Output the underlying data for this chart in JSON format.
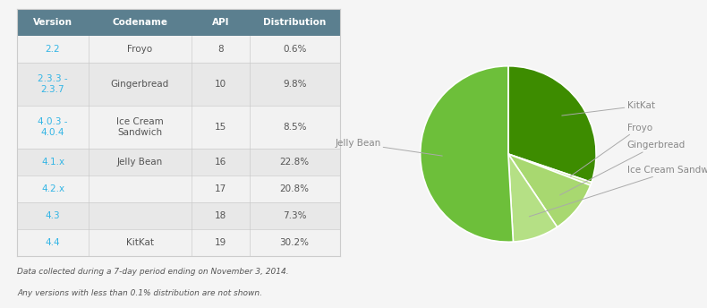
{
  "table": {
    "headers": [
      "Version",
      "Codename",
      "API",
      "Distribution"
    ],
    "rows": [
      [
        "2.2",
        "Froyo",
        "8",
        "0.6%"
      ],
      [
        "2.3.3 -\n2.3.7",
        "Gingerbread",
        "10",
        "9.8%"
      ],
      [
        "4.0.3 -\n4.0.4",
        "Ice Cream\nSandwich",
        "15",
        "8.5%"
      ],
      [
        "4.1.x",
        "Jelly Bean",
        "16",
        "22.8%"
      ],
      [
        "4.2.x",
        "",
        "17",
        "20.8%"
      ],
      [
        "4.3",
        "",
        "18",
        "7.3%"
      ],
      [
        "4.4",
        "KitKat",
        "19",
        "30.2%"
      ]
    ],
    "header_bg": "#5b7f8f",
    "header_fg": "#ffffff",
    "row_bg1": "#f2f2f2",
    "row_bg2": "#e8e8e8",
    "version_color": "#33b5e5",
    "text_color": "#555555",
    "border_color": "#cccccc"
  },
  "pie": {
    "labels": [
      "KitKat",
      "Froyo",
      "Gingerbread",
      "Ice Cream Sandwich",
      "Jelly Bean"
    ],
    "values": [
      30.2,
      0.6,
      9.8,
      8.5,
      50.9
    ],
    "colors": [
      "#3d8c00",
      "#c8e6a0",
      "#a8d870",
      "#b5e085",
      "#6dbf3a"
    ],
    "startangle": 90,
    "wedge_edge_color": "#ffffff",
    "label_color": "#888888",
    "label_line_color": "#aaaaaa"
  },
  "footnote_line1": "Data collected during a 7-day period ending on November 3, 2014.",
  "footnote_line2": "Any versions with less than 0.1% distribution are not shown.",
  "bg_color": "#f5f5f5"
}
